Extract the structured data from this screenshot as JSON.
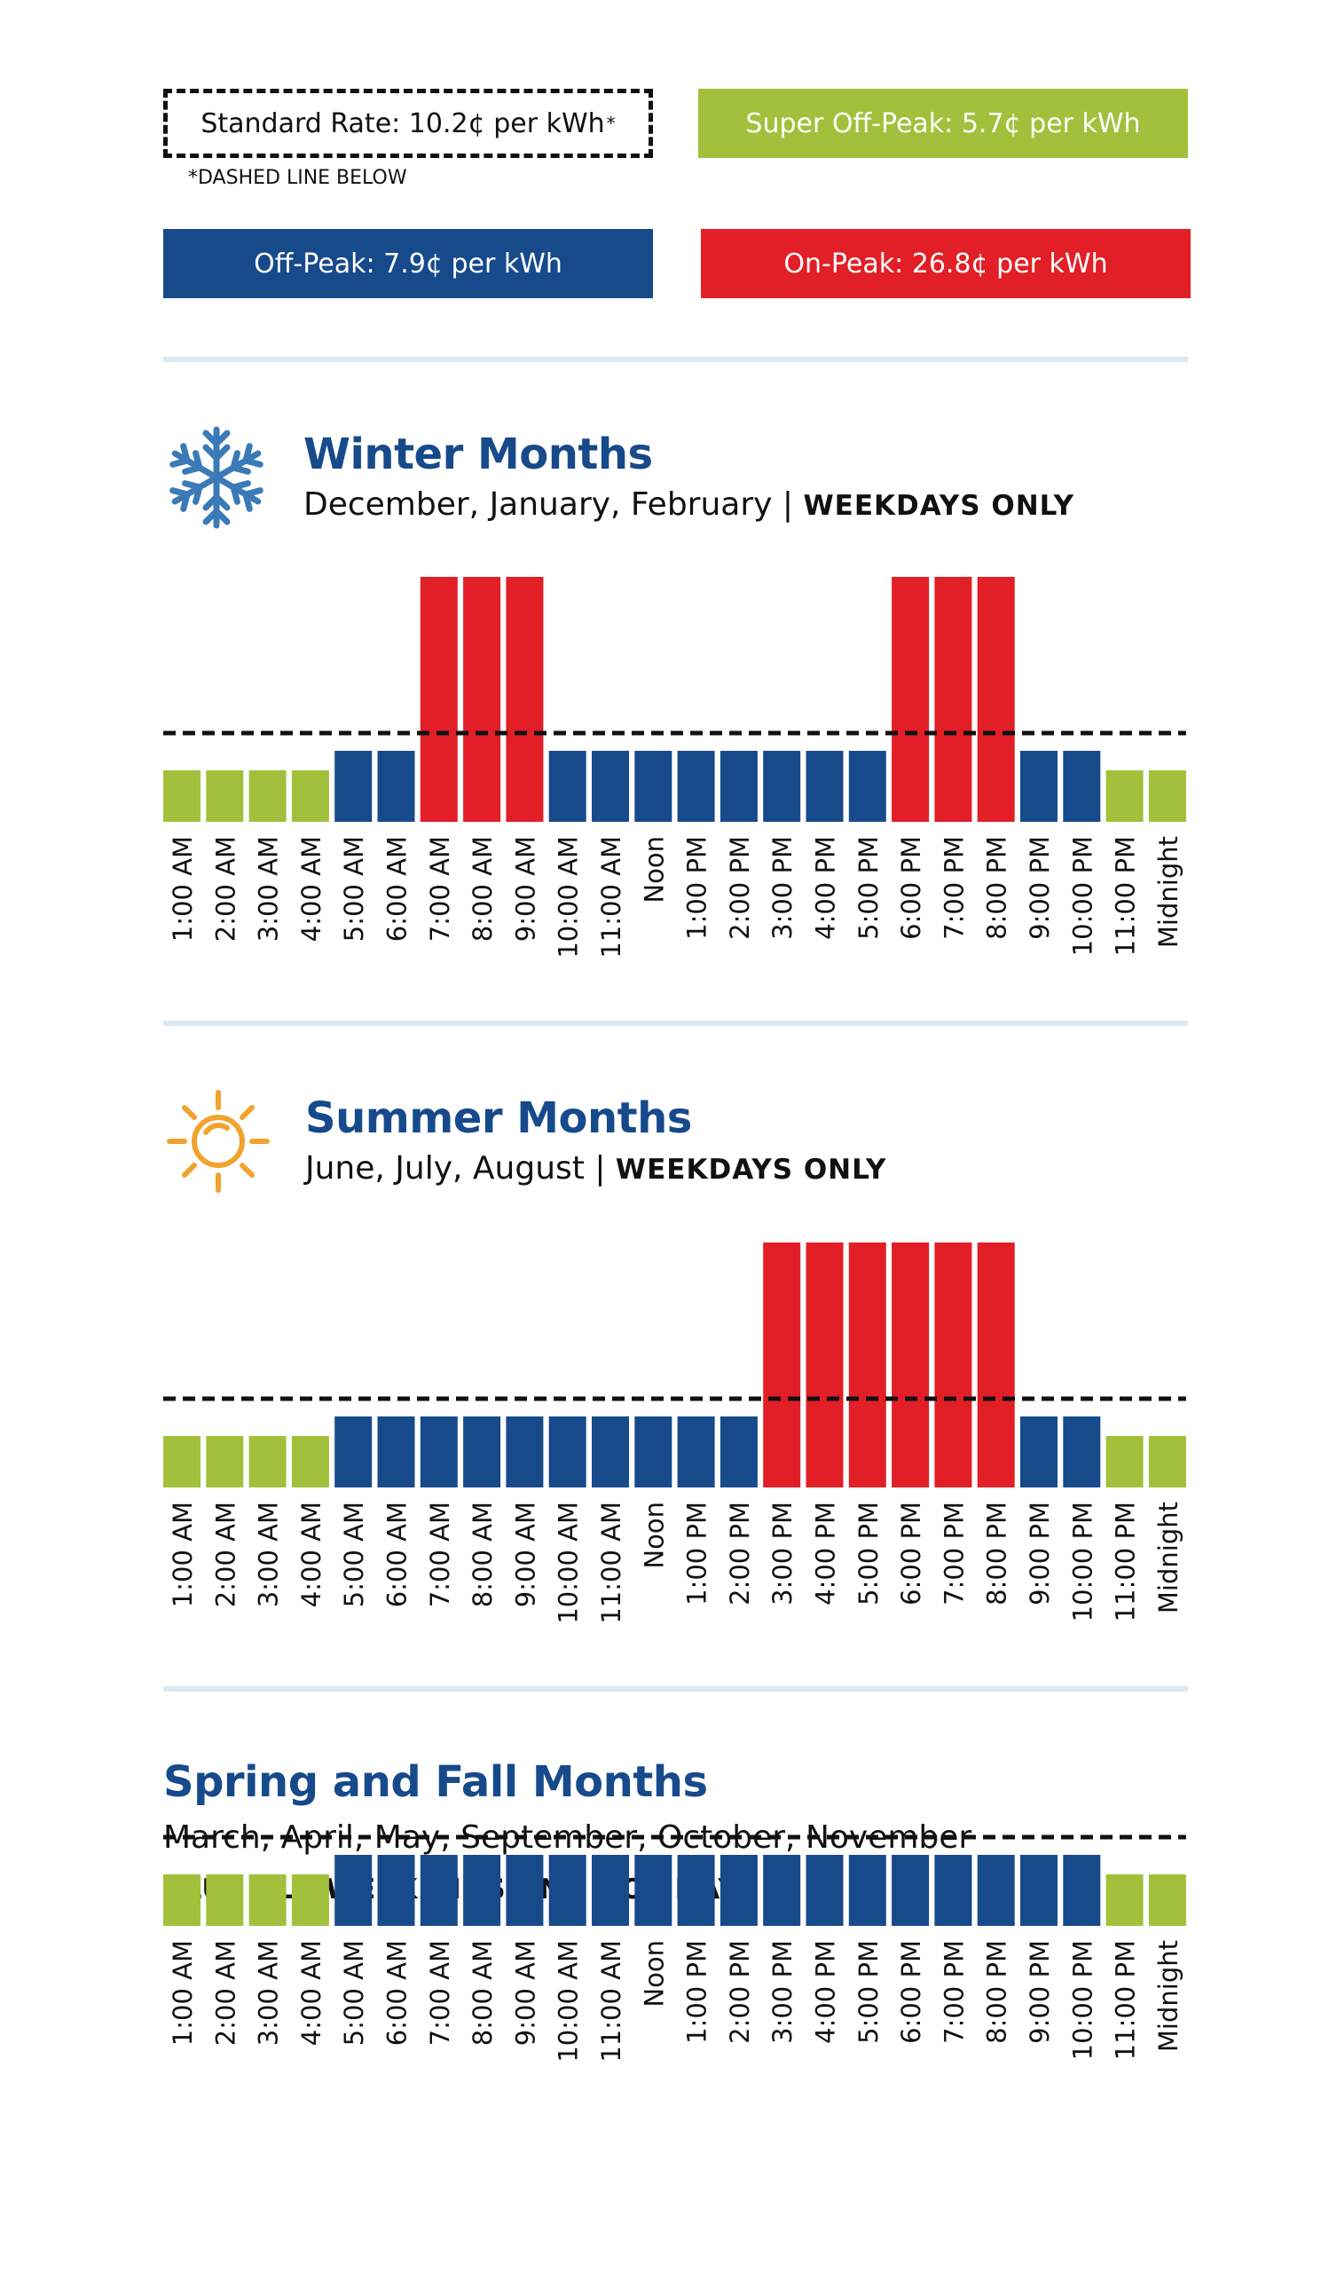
{
  "legend": {
    "standard": "Standard Rate: 10.2¢ per kWh",
    "standard_mark": "*",
    "footnote": "*DASHED LINE BELOW",
    "super_off_peak": "Super Off-Peak: 5.7¢ per kWh",
    "off_peak": "Off-Peak: 7.9¢ per kWh",
    "on_peak": "On-Peak: 26.8¢ per kWh"
  },
  "colors": {
    "super_off_peak": "#a2c03b",
    "off_peak": "#174a8b",
    "on_peak": "#e21f26",
    "title": "#174a8b",
    "divider": "#dce8f4"
  },
  "sections": {
    "winter": {
      "title": "Winter Months",
      "subtitle": "December, January, February | ",
      "subtitle_caps": "WEEKDAYS ONLY",
      "icon": "snowflake-icon"
    },
    "summer": {
      "title": "Summer Months",
      "subtitle": "June, July, August | ",
      "subtitle_caps": "WEEKDAYS ONLY",
      "icon": "sun-icon"
    },
    "spring_fall": {
      "title": "Spring and Fall Months",
      "subtitle": "March, April, May, September, October, November",
      "subtitle_caps": "PLUS ALL WEEKENDS AND HOLIDAYS"
    }
  },
  "chart_data": [
    {
      "type": "bar",
      "title": "Winter Months",
      "categories": [
        "1:00 AM",
        "2:00 AM",
        "3:00 AM",
        "4:00 AM",
        "5:00 AM",
        "6:00 AM",
        "7:00 AM",
        "8:00 AM",
        "9:00 AM",
        "10:00 AM",
        "11:00 AM",
        "Noon",
        "1:00 PM",
        "2:00 PM",
        "3:00 PM",
        "4:00 PM",
        "5:00 PM",
        "6:00 PM",
        "7:00 PM",
        "8:00 PM",
        "9:00 PM",
        "10:00 PM",
        "11:00 PM",
        "Midnight"
      ],
      "values": [
        5.7,
        5.7,
        5.7,
        5.7,
        7.9,
        7.9,
        26.8,
        26.8,
        26.8,
        7.9,
        7.9,
        7.9,
        7.9,
        7.9,
        7.9,
        7.9,
        7.9,
        26.8,
        26.8,
        26.8,
        7.9,
        7.9,
        5.7,
        5.7
      ],
      "reference_line": 10.2,
      "unit": "¢ per kWh"
    },
    {
      "type": "bar",
      "title": "Summer Months",
      "categories": [
        "1:00 AM",
        "2:00 AM",
        "3:00 AM",
        "4:00 AM",
        "5:00 AM",
        "6:00 AM",
        "7:00 AM",
        "8:00 AM",
        "9:00 AM",
        "10:00 AM",
        "11:00 AM",
        "Noon",
        "1:00 PM",
        "2:00 PM",
        "3:00 PM",
        "4:00 PM",
        "5:00 PM",
        "6:00 PM",
        "7:00 PM",
        "8:00 PM",
        "9:00 PM",
        "10:00 PM",
        "11:00 PM",
        "Midnight"
      ],
      "values": [
        5.7,
        5.7,
        5.7,
        5.7,
        7.9,
        7.9,
        7.9,
        7.9,
        7.9,
        7.9,
        7.9,
        7.9,
        7.9,
        7.9,
        26.8,
        26.8,
        26.8,
        26.8,
        26.8,
        26.8,
        7.9,
        7.9,
        5.7,
        5.7
      ],
      "reference_line": 10.2,
      "unit": "¢ per kWh"
    },
    {
      "type": "bar",
      "title": "Spring and Fall Months",
      "categories": [
        "1:00 AM",
        "2:00 AM",
        "3:00 AM",
        "4:00 AM",
        "5:00 AM",
        "6:00 AM",
        "7:00 AM",
        "8:00 AM",
        "9:00 AM",
        "10:00 AM",
        "11:00 AM",
        "Noon",
        "1:00 PM",
        "2:00 PM",
        "3:00 PM",
        "4:00 PM",
        "5:00 PM",
        "6:00 PM",
        "7:00 PM",
        "8:00 PM",
        "9:00 PM",
        "10:00 PM",
        "11:00 PM",
        "Midnight"
      ],
      "values": [
        5.7,
        5.7,
        5.7,
        5.7,
        7.9,
        7.9,
        7.9,
        7.9,
        7.9,
        7.9,
        7.9,
        7.9,
        7.9,
        7.9,
        7.9,
        7.9,
        7.9,
        7.9,
        7.9,
        7.9,
        7.9,
        7.9,
        5.7,
        5.7
      ],
      "reference_line": 10.2,
      "unit": "¢ per kWh"
    }
  ]
}
